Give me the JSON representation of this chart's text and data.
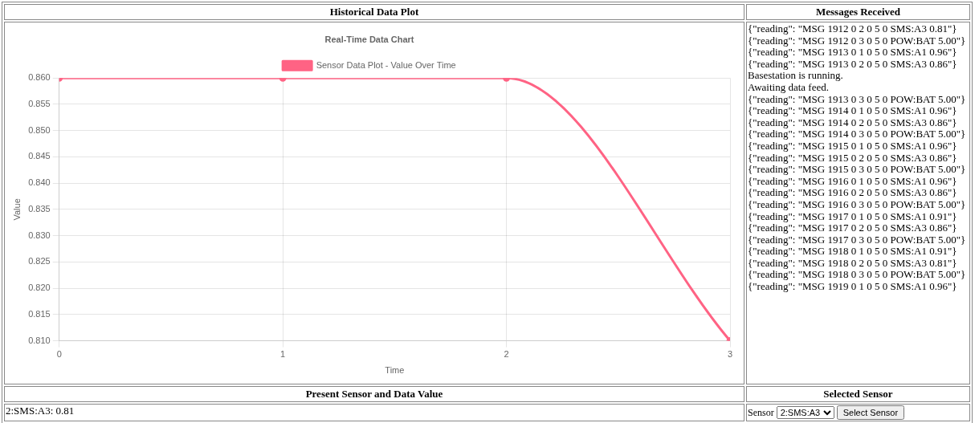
{
  "chart_data": [
    {
      "type": "line",
      "title": "Real-Time Data Chart",
      "annotations": [
        "Historical Data Plot"
      ],
      "xlabel": "Time",
      "ylabel": "Value",
      "x": [
        0,
        1,
        2,
        3
      ],
      "series": [
        {
          "name": "Sensor Data Plot - Value Over Time",
          "color": "#ff6384",
          "values": [
            0.86,
            0.86,
            0.86,
            0.81
          ]
        }
      ],
      "xlim": [
        0,
        3
      ],
      "xticks": [
        0,
        1,
        2,
        3
      ],
      "ylim": [
        0.81,
        0.86
      ],
      "yticks": [
        {
          "value": 0.81,
          "label": "0.810"
        },
        {
          "value": 0.815,
          "label": "0.815"
        },
        {
          "value": 0.82,
          "label": "0.820"
        },
        {
          "value": 0.825,
          "label": "0.825"
        },
        {
          "value": 0.83,
          "label": "0.830"
        },
        {
          "value": 0.835,
          "label": "0.835"
        },
        {
          "value": 0.84,
          "label": "0.840"
        },
        {
          "value": 0.845,
          "label": "0.845"
        },
        {
          "value": 0.85,
          "label": "0.850"
        },
        {
          "value": 0.855,
          "label": "0.855"
        },
        {
          "value": 0.86,
          "label": "0.860"
        }
      ],
      "grid": true,
      "legend": "top",
      "marker": "circle",
      "line_style": "solid"
    },
    {
      "type": "other",
      "title": "Messages Received",
      "annotations": [
        "{\"reading\": \"MSG 1912 0 2 0 5 0 SMS:A3 0.81\"}",
        "{\"reading\": \"MSG 1912 0 3 0 5 0 POW:BAT 5.00\"}",
        "{\"reading\": \"MSG 1913 0 1 0 5 0 SMS:A1 0.96\"}",
        "{\"reading\": \"MSG 1913 0 2 0 5 0 SMS:A3 0.86\"}",
        "Basestation is running.",
        "Awaiting data feed.",
        "{\"reading\": \"MSG 1913 0 3 0 5 0 POW:BAT 5.00\"}",
        "{\"reading\": \"MSG 1914 0 1 0 5 0 SMS:A1 0.96\"}",
        "{\"reading\": \"MSG 1914 0 2 0 5 0 SMS:A3 0.86\"}",
        "{\"reading\": \"MSG 1914 0 3 0 5 0 POW:BAT 5.00\"}",
        "{\"reading\": \"MSG 1915 0 1 0 5 0 SMS:A1 0.96\"}",
        "{\"reading\": \"MSG 1915 0 2 0 5 0 SMS:A3 0.86\"}",
        "{\"reading\": \"MSG 1915 0 3 0 5 0 POW:BAT 5.00\"}",
        "{\"reading\": \"MSG 1916 0 1 0 5 0 SMS:A1 0.96\"}",
        "{\"reading\": \"MSG 1916 0 2 0 5 0 SMS:A3 0.86\"}",
        "{\"reading\": \"MSG 1916 0 3 0 5 0 POW:BAT 5.00\"}",
        "{\"reading\": \"MSG 1917 0 1 0 5 0 SMS:A1 0.91\"}",
        "{\"reading\": \"MSG 1917 0 2 0 5 0 SMS:A3 0.86\"}",
        "{\"reading\": \"MSG 1917 0 3 0 5 0 POW:BAT 5.00\"}",
        "{\"reading\": \"MSG 1918 0 1 0 5 0 SMS:A1 0.91\"}",
        "{\"reading\": \"MSG 1918 0 2 0 5 0 SMS:A3 0.81\"}",
        "{\"reading\": \"MSG 1918 0 3 0 5 0 POW:BAT 5.00\"}",
        "{\"reading\": \"MSG 1919 0 1 0 5 0 SMS:A1 0.96\"}"
      ]
    },
    {
      "type": "other",
      "title": "Present Sensor and Data Value",
      "annotations": [
        "2:SMS:A3: 0.81"
      ]
    },
    {
      "type": "other",
      "title": "Selected Sensor",
      "annotations": [
        "Sensor",
        "2:SMS:A3",
        "Select Sensor"
      ]
    }
  ]
}
